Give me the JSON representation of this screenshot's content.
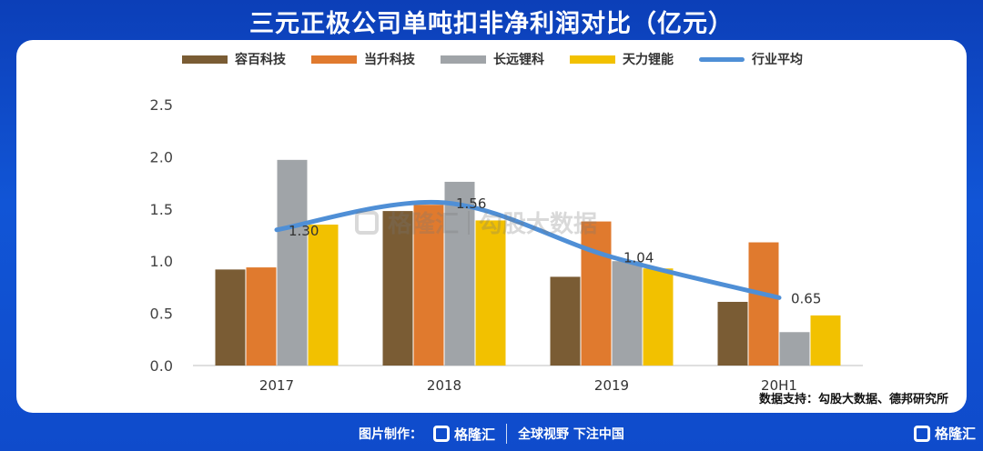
{
  "title": "三元正极公司单吨扣非净利润对比（亿元）",
  "watermark": {
    "logo_text": "格隆汇",
    "text": "勾股大数据"
  },
  "source": "数据支持：勾股大数据、德邦研究所",
  "footer": {
    "made_by": "图片制作：",
    "logo_text": "格隆汇",
    "slogan": "全球视野 下注中国"
  },
  "corner_logo": "格隆汇",
  "chart_data": {
    "type": "bar",
    "categories": [
      "2017",
      "2018",
      "2019",
      "20H1"
    ],
    "series": [
      {
        "name": "容百科技",
        "type": "bar",
        "color": "#7a5c34",
        "values": [
          0.92,
          1.48,
          0.85,
          0.61
        ]
      },
      {
        "name": "当升科技",
        "type": "bar",
        "color": "#e07a2e",
        "values": [
          0.94,
          1.54,
          1.38,
          1.18
        ]
      },
      {
        "name": "长远锂科",
        "type": "bar",
        "color": "#a0a4a8",
        "values": [
          1.97,
          1.76,
          1.0,
          0.32
        ]
      },
      {
        "name": "天力锂能",
        "type": "bar",
        "color": "#f2c100",
        "values": [
          1.35,
          1.39,
          0.93,
          0.48
        ]
      },
      {
        "name": "行业平均",
        "type": "line",
        "color": "#4f8fd6",
        "values": [
          1.3,
          1.56,
          1.04,
          0.65
        ]
      }
    ],
    "data_labels": [
      "1.30",
      "1.56",
      "1.04",
      "0.65"
    ],
    "yticks": [
      "0.0",
      "0.5",
      "1.0",
      "1.5",
      "2.0",
      "2.5"
    ],
    "ylim": [
      0,
      2.5
    ],
    "grid": false,
    "legend": "top"
  }
}
